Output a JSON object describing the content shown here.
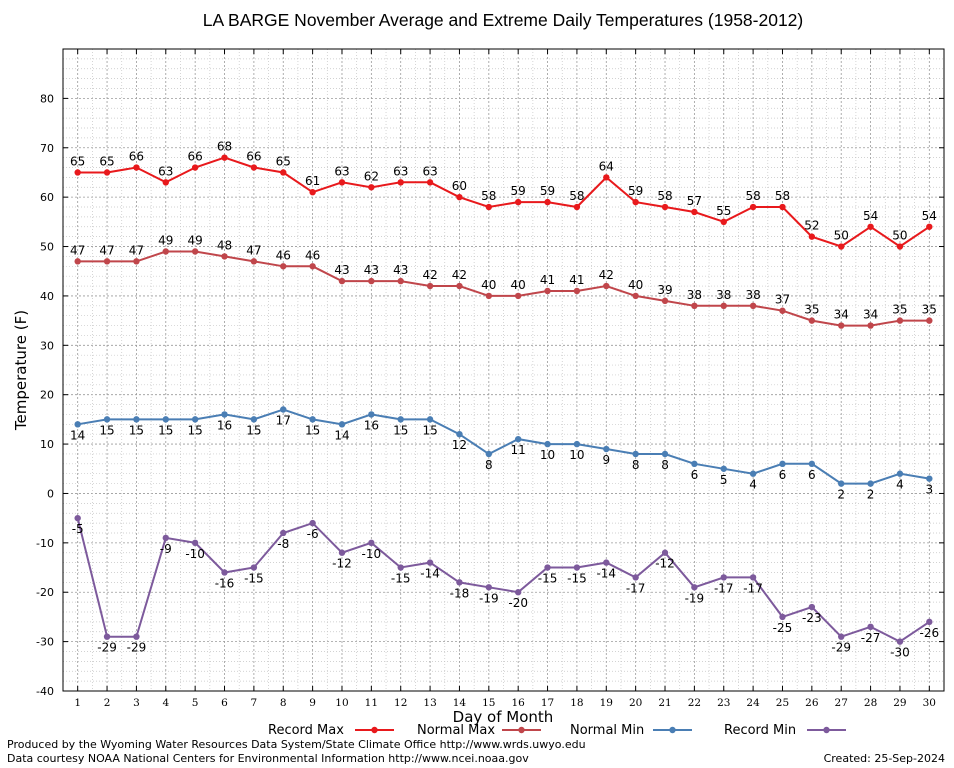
{
  "chart_data": {
    "type": "line",
    "title": "LA BARGE November Average and Extreme Daily Temperatures (1958-2012)",
    "xlabel": "Day of Month",
    "ylabel": "Temperature (F)",
    "xlim": [
      0.5,
      30.5
    ],
    "ylim": [
      -40,
      90
    ],
    "yticks": [
      -40,
      -30,
      -20,
      -10,
      0,
      10,
      20,
      30,
      40,
      50,
      60,
      70,
      80
    ],
    "x": [
      1,
      2,
      3,
      4,
      5,
      6,
      7,
      8,
      9,
      10,
      11,
      12,
      13,
      14,
      15,
      16,
      17,
      18,
      19,
      20,
      21,
      22,
      23,
      24,
      25,
      26,
      27,
      28,
      29,
      30
    ],
    "grid": true,
    "legend_position": "bottom",
    "series": [
      {
        "name": "Record Max",
        "color": "#e8191c",
        "label_side": "above",
        "values": [
          65,
          65,
          66,
          63,
          66,
          68,
          66,
          65,
          61,
          63,
          62,
          63,
          63,
          60,
          58,
          59,
          59,
          58,
          64,
          59,
          58,
          57,
          55,
          58,
          58,
          52,
          50,
          54,
          50,
          54
        ]
      },
      {
        "name": "Normal Max",
        "color": "#c0464b",
        "label_side": "above",
        "values": [
          47,
          47,
          47,
          49,
          49,
          48,
          47,
          46,
          46,
          43,
          43,
          43,
          42,
          42,
          40,
          40,
          41,
          41,
          42,
          40,
          39,
          38,
          38,
          38,
          37,
          35,
          34,
          34,
          35,
          35
        ]
      },
      {
        "name": "Normal Min",
        "color": "#4a7eb4",
        "label_side": "below",
        "values": [
          14,
          15,
          15,
          15,
          15,
          16,
          15,
          17,
          15,
          14,
          16,
          15,
          15,
          12,
          8,
          11,
          10,
          10,
          9,
          8,
          8,
          6,
          5,
          4,
          6,
          6,
          2,
          2,
          4,
          3
        ]
      },
      {
        "name": "Record Min",
        "color": "#7d5a9c",
        "label_side": "below",
        "values": [
          -5,
          -29,
          -29,
          -9,
          -10,
          -16,
          -15,
          -8,
          -6,
          -12,
          -10,
          -15,
          -14,
          -18,
          -19,
          -20,
          -15,
          -15,
          -14,
          -17,
          -12,
          -19,
          -17,
          -17,
          -25,
          -23,
          -29,
          -27,
          -30,
          -26
        ]
      }
    ]
  },
  "footer": {
    "produced_by": "Produced by the Wyoming Water Resources Data System/State Climate Office http://www.wrds.uwyo.edu",
    "courtesy": "Data courtesy NOAA National Centers for Environmental Information http://www.ncei.noaa.gov",
    "created": "Created:  25-Sep-2024"
  }
}
